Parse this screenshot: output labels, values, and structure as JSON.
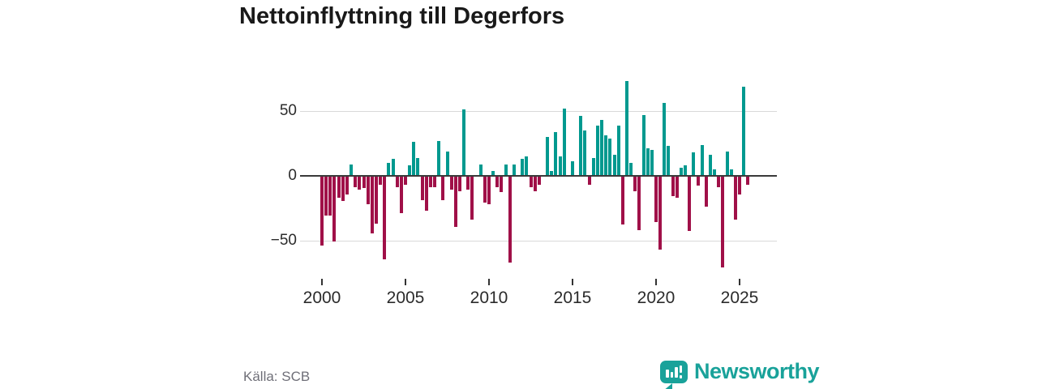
{
  "title": "Nettoinflyttning till Degerfors",
  "source": "Källa: SCB",
  "branding": {
    "name": "Newsworthy"
  },
  "colors": {
    "positive": "#00998f",
    "negative": "#a01048",
    "grid": "#d9d9d9",
    "zero_axis": "#3a3a3a",
    "tick": "#333333",
    "axis_text": "#2b2b2b",
    "muted_text": "#6f6f78",
    "brand_teal": "#19a29a",
    "title_text": "#191919"
  },
  "chart_data": {
    "type": "bar",
    "title": "Nettoinflyttning till Degerfors",
    "xlabel": "",
    "ylabel": "",
    "frequency": "quarterly",
    "start_year": 2000,
    "start_quarter": 1,
    "ylim": [
      -80,
      80
    ],
    "grid": "horizontal",
    "y_ticks": [
      {
        "value": 50,
        "label": "50"
      },
      {
        "value": 0,
        "label": "0"
      },
      {
        "value": -50,
        "label": "−50"
      }
    ],
    "x_ticks": [
      {
        "year": 2000,
        "label": "2000"
      },
      {
        "year": 2005,
        "label": "2005"
      },
      {
        "year": 2010,
        "label": "2010"
      },
      {
        "year": 2015,
        "label": "2015"
      },
      {
        "year": 2020,
        "label": "2020"
      },
      {
        "year": 2025,
        "label": "2025"
      }
    ],
    "values": [
      -53,
      -30,
      -30,
      -50,
      -16,
      -19,
      -14,
      9,
      -8,
      -10,
      -9,
      -21,
      -44,
      -36,
      -6,
      -64,
      10,
      13,
      -8,
      -28,
      -6,
      8,
      26,
      14,
      -18,
      -26,
      -8,
      -8,
      27,
      -18,
      19,
      -10,
      -39,
      -11,
      51,
      -10,
      -33,
      0,
      9,
      -20,
      -21,
      4,
      -8,
      -12,
      9,
      -66,
      9,
      0,
      13,
      15,
      -8,
      -11,
      -6,
      0,
      30,
      4,
      34,
      15,
      52,
      0,
      11,
      0,
      46,
      35,
      -6,
      14,
      39,
      43,
      31,
      29,
      16,
      39,
      -37,
      73,
      10,
      -11,
      -41,
      47,
      21,
      20,
      -35,
      -56,
      56,
      23,
      -15,
      -16,
      6,
      8,
      -42,
      18,
      -7,
      24,
      -23,
      16,
      5,
      -8,
      -70,
      19,
      5,
      -33,
      -14,
      69,
      -6
    ]
  }
}
